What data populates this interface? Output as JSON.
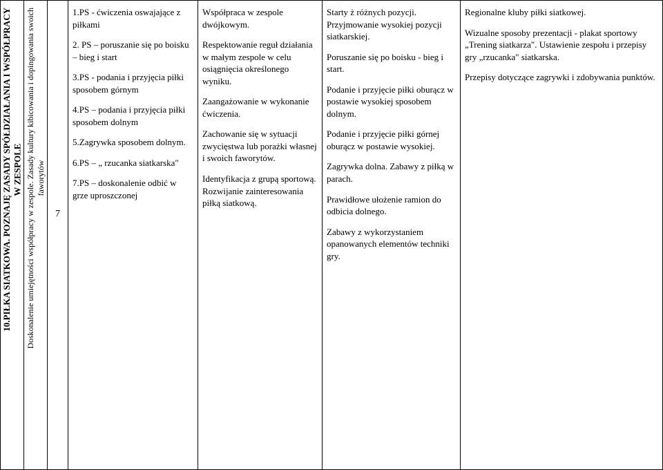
{
  "vertical_header1_line1": "10.PIŁKA SIATKOWA. POZNAJĘ ZASADY SPÓŁDZIAŁANIA I WSPÓŁPRACY",
  "vertical_header1_line2": "W ZESPOLE",
  "vertical_header2_line1": "Doskonalenie umiejętności współpracy w zespole. Zasady kultury kibicowania i dopingowania swoich",
  "vertical_header2_line2": "faworytów",
  "row_number": "7",
  "colA": {
    "p1": "1.PS - ćwiczenia oswajające z piłkami",
    "p2": "2. PS – poruszanie się po boisku – bieg i start",
    "p3": "3.PS - podania i przyjęcia piłki sposobem górnym",
    "p4": "4.PS – podania i przyjęcia piłki sposobem dolnym",
    "p5": "5.Zagrywka sposobem dolnym.",
    "p6": "6.PS – „ rzucanka siatkarska\"",
    "p7": "7.PS – doskonalenie odbić w grze uproszczonej"
  },
  "colB": {
    "p1": "Współpraca w zespole dwójkowym.",
    "p2": "Respektowanie reguł działania w małym zespole w celu osiągnięcia określonego wyniku.",
    "p3": " Zaangażowanie w wykonanie ćwiczenia.",
    "p4": "Zachowanie się w sytuacji zwycięstwa lub porażki własnej i swoich faworytów.",
    "p5": "Identyfikacja z grupą sportową. Rozwijanie zainteresowania piłką siatkową."
  },
  "colC": {
    "p1": "Starty ż różnych pozycji. Przyjmowanie wysokiej pozycji siatkarskiej.",
    "p2": "Poruszanie się po boisku - bieg i start.",
    "p3": "Podanie i przyjęcie piłki oburącz w postawie wysokiej sposobem dolnym.",
    "p4": "Podanie i przyjęcie piłki górnej oburącz w postawie wysokiej.",
    "p5": "Zagrywka dolna. Zabawy z piłką w parach.",
    "p6": "Prawidłowe ułożenie ramion do odbicia dolnego.",
    "p7": "Zabawy z wykorzystaniem opanowanych elementów techniki gry."
  },
  "colD": {
    "p1": "Regionalne kluby piłki siatkowej.",
    "p2": "Wizualne sposoby prezentacji - plakat sportowy „Trening siatkarza\". Ustawienie zespołu i przepisy gry „rzucanka\" siatkarska.",
    "p3": " Przepisy dotyczące zagrywki  i zdobywania punktów."
  }
}
